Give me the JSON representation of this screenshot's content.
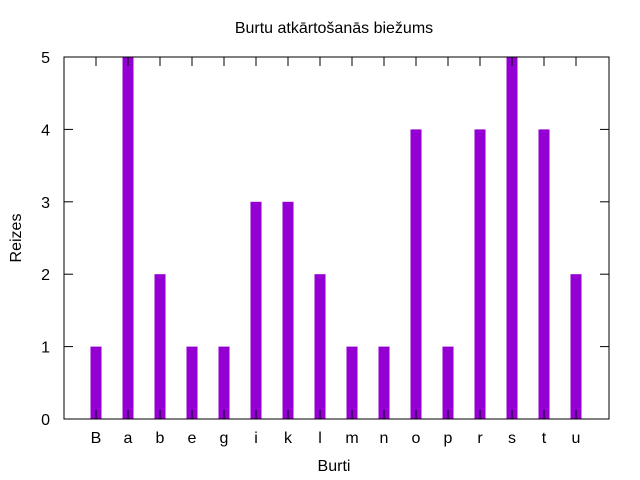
{
  "chart_data": {
    "type": "bar",
    "title": "Burtu atkārtošanās biežums",
    "xlabel": "Burti",
    "ylabel": "Reizes",
    "categories": [
      "B",
      "a",
      "b",
      "e",
      "g",
      "i",
      "k",
      "l",
      "m",
      "n",
      "o",
      "p",
      "r",
      "s",
      "t",
      "u"
    ],
    "values": [
      1,
      5,
      2,
      1,
      1,
      3,
      3,
      2,
      1,
      1,
      4,
      1,
      4,
      5,
      4,
      2
    ],
    "ylim": [
      0,
      5
    ],
    "yticks": [
      0,
      1,
      2,
      3,
      4,
      5
    ],
    "bar_color": "#9400d3",
    "grid": false,
    "legend": "none"
  }
}
